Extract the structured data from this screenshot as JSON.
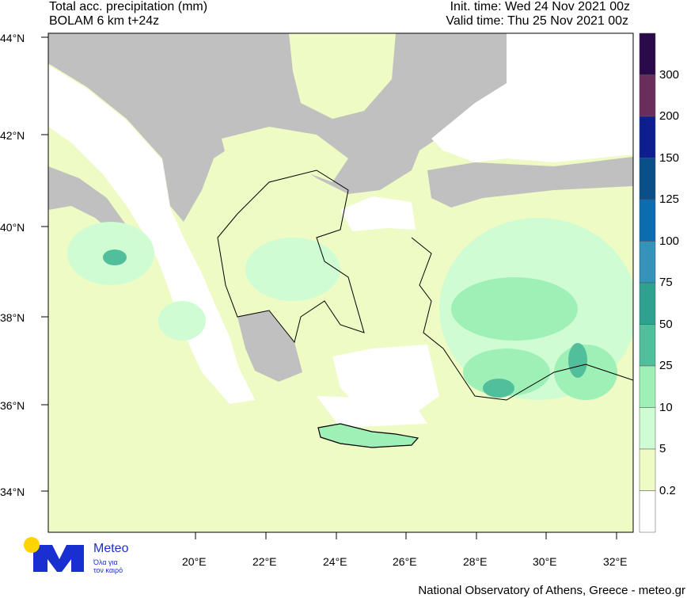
{
  "header": {
    "title": "Total acc. precipitation (mm)",
    "model": "BOLAM 6 km t+24z",
    "init_time": "Init. time: Wed 24 Nov 2021 00z",
    "valid_time": "Valid time: Thu 25 Nov 2021 00z"
  },
  "map": {
    "lat_labels": [
      "44°N",
      "42°N",
      "40°N",
      "38°N",
      "36°N",
      "34°N"
    ],
    "lon_labels": [
      "20°E",
      "22°E",
      "24°E",
      "26°E",
      "28°E",
      "30°E",
      "32°E"
    ],
    "colors": {
      "sea": "#ffffff",
      "dry_land": "#c0c0c0",
      "coast": "#000000"
    }
  },
  "colorbar": {
    "labels": [
      "300",
      "200",
      "150",
      "125",
      "100",
      "75",
      "50",
      "25",
      "10",
      "5",
      "0.2"
    ],
    "colors": [
      "#2a0a4a",
      "#6b2d5c",
      "#0d1f8f",
      "#0a4f8a",
      "#0b6db0",
      "#3592b8",
      "#2ea28e",
      "#52bf9c",
      "#9ef0b7",
      "#cffcd3",
      "#eefbc4",
      "#ffffff"
    ]
  },
  "logo": {
    "name": "Meteo",
    "tagline1": "Όλα για",
    "tagline2": "τον καιρό",
    "blue": "#1a2fd0",
    "yellow": "#ffd400"
  },
  "footer": {
    "credit": "National Observatory of Athens, Greece - meteo.gr"
  }
}
